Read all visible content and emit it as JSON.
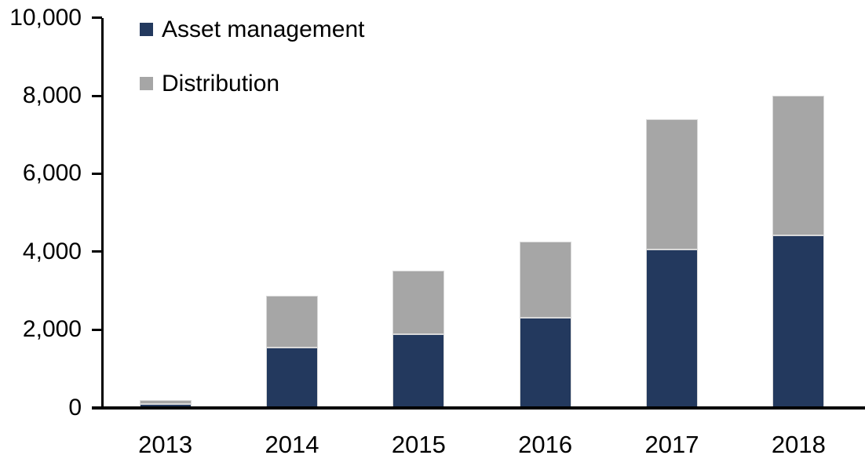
{
  "chart_data": {
    "type": "bar",
    "stacked": true,
    "title": "",
    "xlabel": "",
    "ylabel": "",
    "categories": [
      "2013",
      "2014",
      "2015",
      "2016",
      "2017",
      "2018"
    ],
    "series": [
      {
        "name": "Asset management",
        "color": "#23395E",
        "values": [
          90,
          1540,
          1890,
          2300,
          4050,
          4410
        ]
      },
      {
        "name": "Distribution",
        "color": "#A6A6A6",
        "values": [
          110,
          1330,
          1620,
          1950,
          3350,
          3590
        ]
      }
    ],
    "totals": [
      200,
      2870,
      3510,
      4250,
      7400,
      8000
    ],
    "ylim": [
      0,
      10000
    ],
    "y_tick_values": [
      10000,
      8000,
      6000,
      4000,
      2000,
      0
    ],
    "y_tick_labels": [
      "10,000",
      "8,000",
      "6,000",
      "4,000",
      "2,000",
      "0"
    ],
    "grid": false,
    "legend_position": "top-left",
    "axis_color": "#000000",
    "background_color": "#ffffff"
  }
}
